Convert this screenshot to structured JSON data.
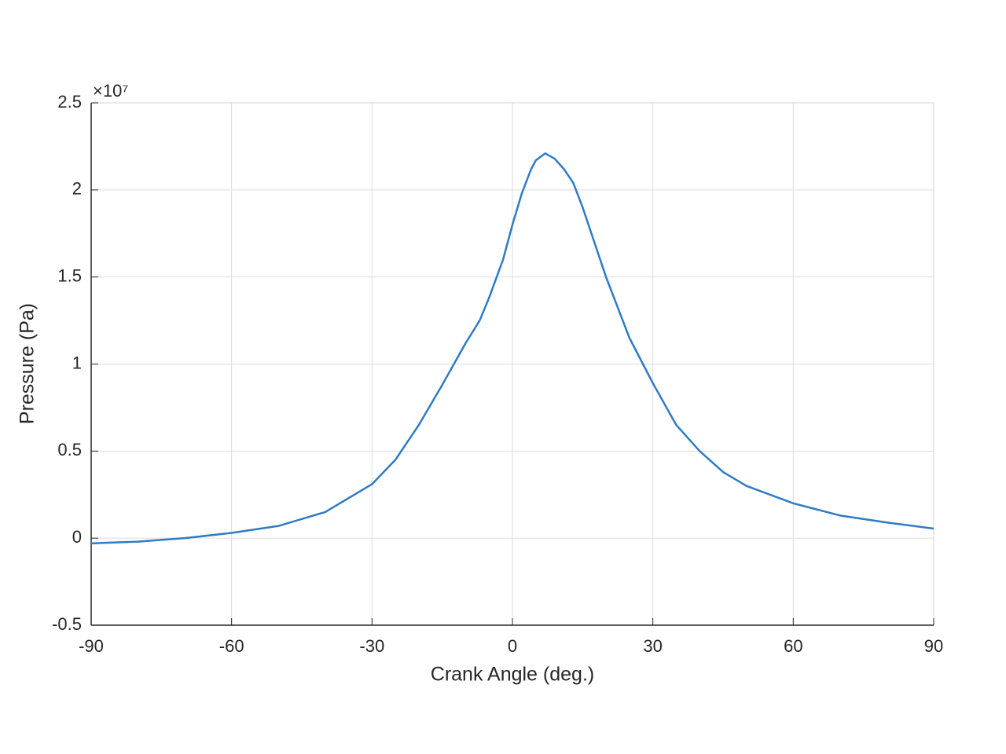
{
  "chart_data": {
    "type": "line",
    "x_label": "Crank Angle (deg.)",
    "y_label": "Pressure (Pa)",
    "y_multiplier": "×10⁷",
    "x": [
      -90,
      -80,
      -70,
      -60,
      -50,
      -40,
      -30,
      -25,
      -20,
      -15,
      -10,
      -7,
      -5,
      -2,
      0,
      2,
      4,
      5,
      7,
      9,
      11,
      13,
      15,
      20,
      25,
      30,
      35,
      40,
      45,
      50,
      60,
      70,
      80,
      90
    ],
    "series": [
      {
        "color": "#2f7bc4",
        "values": [
          -0.03,
          -0.02,
          0.0,
          0.03,
          0.07,
          0.15,
          0.31,
          0.45,
          0.65,
          0.88,
          1.12,
          1.25,
          1.38,
          1.6,
          1.8,
          1.98,
          2.12,
          2.17,
          2.21,
          2.18,
          2.12,
          2.04,
          1.9,
          1.5,
          1.15,
          0.89,
          0.65,
          0.5,
          0.38,
          0.3,
          0.2,
          0.13,
          0.09,
          0.055
        ]
      }
    ],
    "xlim": [
      -90,
      90
    ],
    "xticks": [
      -90,
      -60,
      -30,
      0,
      30,
      60,
      90
    ],
    "ylim": [
      -0.5,
      2.5
    ],
    "yticks": [
      -0.5,
      0,
      0.5,
      1,
      1.5,
      2,
      2.5
    ],
    "grid": true
  }
}
